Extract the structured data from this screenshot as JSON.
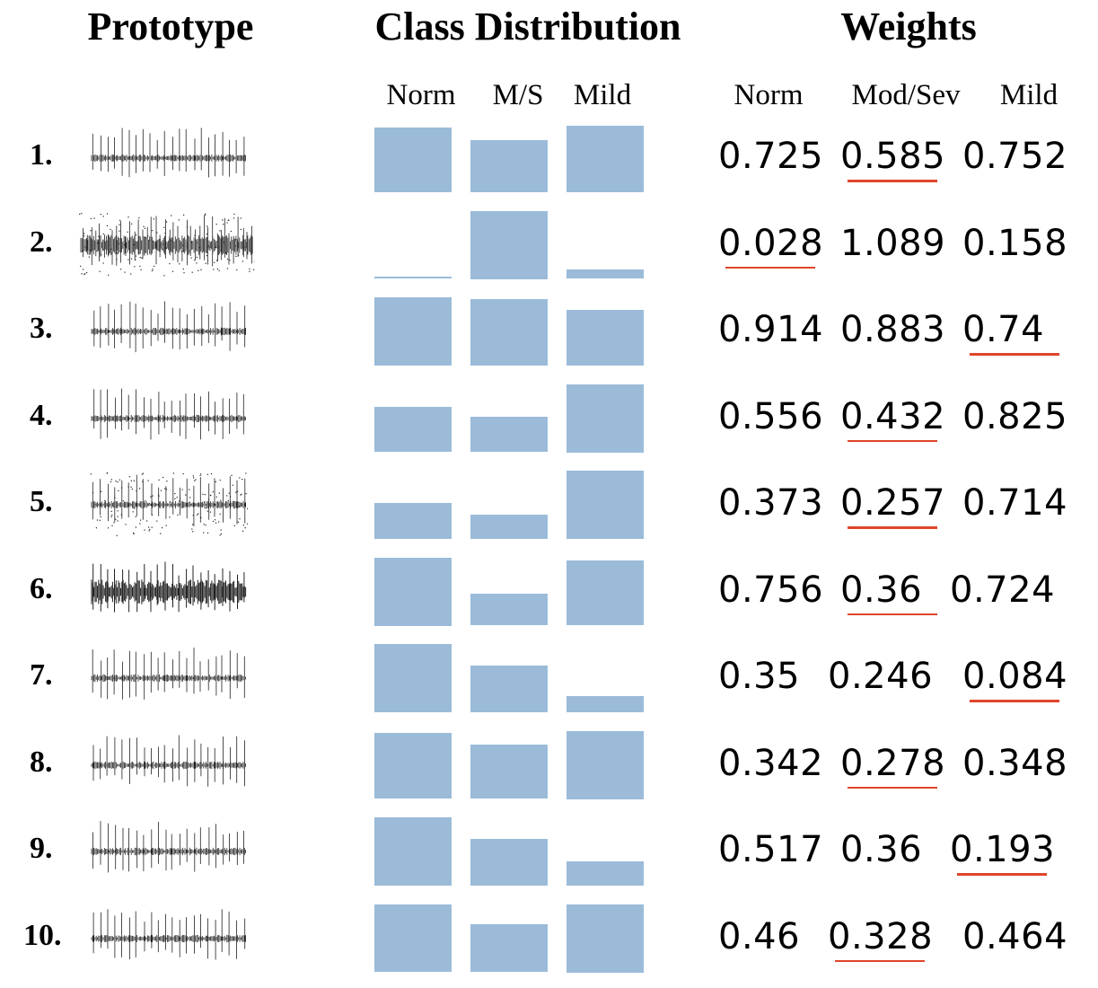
{
  "headers": {
    "prototype": "Prototype",
    "class_distribution": "Class Distribution",
    "weights": "Weights"
  },
  "dist_columns": [
    "Norm",
    "M/S",
    "Mild"
  ],
  "weight_columns": [
    "Norm",
    "Mod/Sev",
    "Mild"
  ],
  "colors": {
    "bar": "#9bbbd9",
    "underline": "#e0452a",
    "waveform": "#222222"
  },
  "chart_data": {
    "type": "bar",
    "categories": [
      "Norm",
      "M/S",
      "Mild"
    ],
    "rows": [
      {
        "label": "1.",
        "distribution": [
          0.95,
          0.76,
          0.98
        ],
        "weights": [
          "0.725",
          "0.585",
          "0.752"
        ],
        "underlined": 1
      },
      {
        "label": "2.",
        "distribution": [
          0.03,
          1.0,
          0.14
        ],
        "weights": [
          "0.028",
          "1.089",
          "0.158"
        ],
        "underlined": 0
      },
      {
        "label": "3.",
        "distribution": [
          1.0,
          0.97,
          0.81
        ],
        "weights": [
          "0.914",
          "0.883",
          "0.74"
        ],
        "underlined": 2
      },
      {
        "label": "4.",
        "distribution": [
          0.67,
          0.52,
          1.0
        ],
        "weights": [
          "0.556",
          "0.432",
          "0.825"
        ],
        "underlined": 1
      },
      {
        "label": "5.",
        "distribution": [
          0.52,
          0.36,
          1.0
        ],
        "weights": [
          "0.373",
          "0.257",
          "0.714"
        ],
        "underlined": 1
      },
      {
        "label": "6.",
        "distribution": [
          1.0,
          0.47,
          0.95
        ],
        "weights": [
          "0.756",
          "0.36",
          "0.724"
        ],
        "underlined": 1
      },
      {
        "label": "7.",
        "distribution": [
          1.0,
          0.69,
          0.24
        ],
        "weights": [
          "0.35",
          "0.246",
          "0.084"
        ],
        "underlined": 2
      },
      {
        "label": "8.",
        "distribution": [
          0.97,
          0.8,
          1.0
        ],
        "weights": [
          "0.342",
          "0.278",
          "0.348"
        ],
        "underlined": 1
      },
      {
        "label": "9.",
        "distribution": [
          1.0,
          0.69,
          0.36
        ],
        "weights": [
          "0.517",
          "0.36",
          "0.193"
        ],
        "underlined": 2
      },
      {
        "label": "10.",
        "distribution": [
          0.99,
          0.71,
          1.0
        ],
        "weights": [
          "0.46",
          "0.328",
          "0.464"
        ],
        "underlined": 1
      }
    ]
  }
}
